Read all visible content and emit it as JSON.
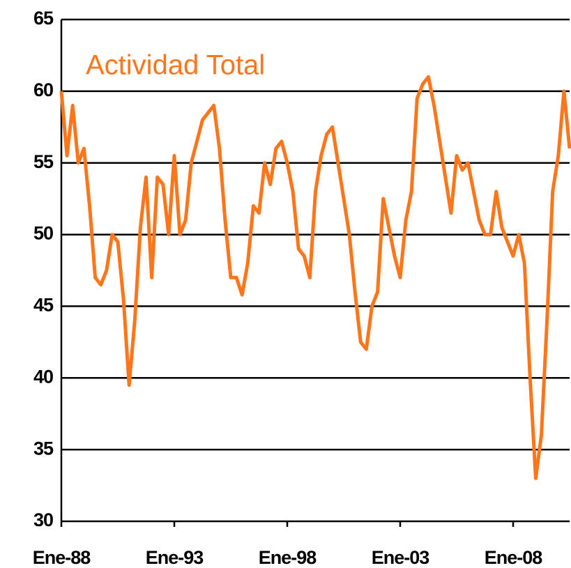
{
  "chart_data": {
    "type": "line",
    "title": "Actividad Total",
    "categories": [
      "Ene-88",
      null,
      null,
      null,
      null,
      null,
      null,
      null,
      null,
      null,
      null,
      null,
      null,
      null,
      null,
      null,
      null,
      null,
      null,
      null,
      "Ene-93",
      null,
      null,
      null,
      null,
      null,
      null,
      null,
      null,
      null,
      null,
      null,
      null,
      null,
      null,
      null,
      null,
      null,
      null,
      null,
      "Ene-98",
      null,
      null,
      null,
      null,
      null,
      null,
      null,
      null,
      null,
      null,
      null,
      null,
      null,
      null,
      null,
      null,
      null,
      null,
      null,
      "Ene-03",
      null,
      null,
      null,
      null,
      null,
      null,
      null,
      null,
      null,
      null,
      null,
      null,
      null,
      null,
      null,
      null,
      null,
      null,
      null,
      "Ene-08",
      null,
      null,
      null,
      null,
      null,
      null,
      null,
      null,
      null,
      null
    ],
    "series": [
      {
        "name": "Actividad Total",
        "color": "#ff7519",
        "values": [
          60,
          55.5,
          59,
          55,
          56,
          52,
          47,
          46.5,
          47.5,
          50,
          49.5,
          45.5,
          39.5,
          44,
          50.5,
          54,
          47,
          54,
          53.5,
          50,
          55.5,
          50,
          51,
          55,
          56.5,
          58,
          58.5,
          59,
          56,
          51,
          47,
          47,
          45.8,
          48,
          52,
          51.5,
          55,
          53.5,
          56,
          56.5,
          55,
          53,
          49,
          48.5,
          47,
          53,
          55.5,
          57,
          57.5,
          55,
          52.5,
          50,
          46,
          42.5,
          42,
          45,
          46,
          52.5,
          50.5,
          48.5,
          47,
          51,
          53,
          59.5,
          60.5,
          61,
          59,
          56.5,
          54,
          51.5,
          55.5,
          54.5,
          55,
          53,
          51,
          50,
          50,
          53,
          50.5,
          49.5,
          48.5,
          50,
          48,
          40,
          33,
          36,
          44,
          53,
          55.5,
          60,
          56
        ]
      }
    ],
    "ylim": [
      30,
      65
    ],
    "yticks": [
      30,
      35,
      40,
      45,
      50,
      55,
      60,
      65
    ],
    "grid": true
  }
}
